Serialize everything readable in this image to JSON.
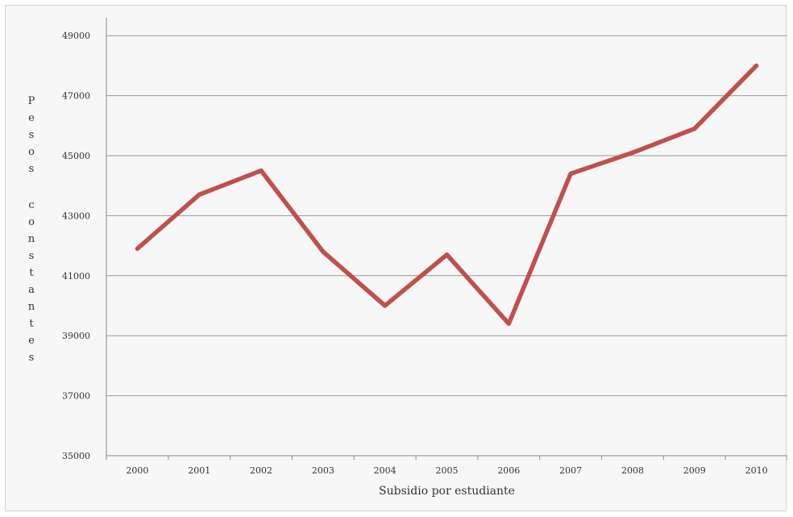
{
  "chart_data": {
    "type": "line",
    "title": "",
    "xlabel": "Subsidio por estudiante",
    "ylabel": "Pesos constantes",
    "x": [
      "2000",
      "2001",
      "2002",
      "2003",
      "2004",
      "2005",
      "2006",
      "2007",
      "2008",
      "2009",
      "2010"
    ],
    "y_ticks": [
      35000,
      37000,
      39000,
      41000,
      43000,
      45000,
      47000,
      49000
    ],
    "ylim": [
      35000,
      50000
    ],
    "grid": true,
    "legend": "none",
    "series": [
      {
        "values": [
          41900,
          43700,
          44500,
          41800,
          40000,
          41700,
          39400,
          44400,
          45100,
          45900,
          48000
        ],
        "color": "#c0504d"
      }
    ]
  }
}
